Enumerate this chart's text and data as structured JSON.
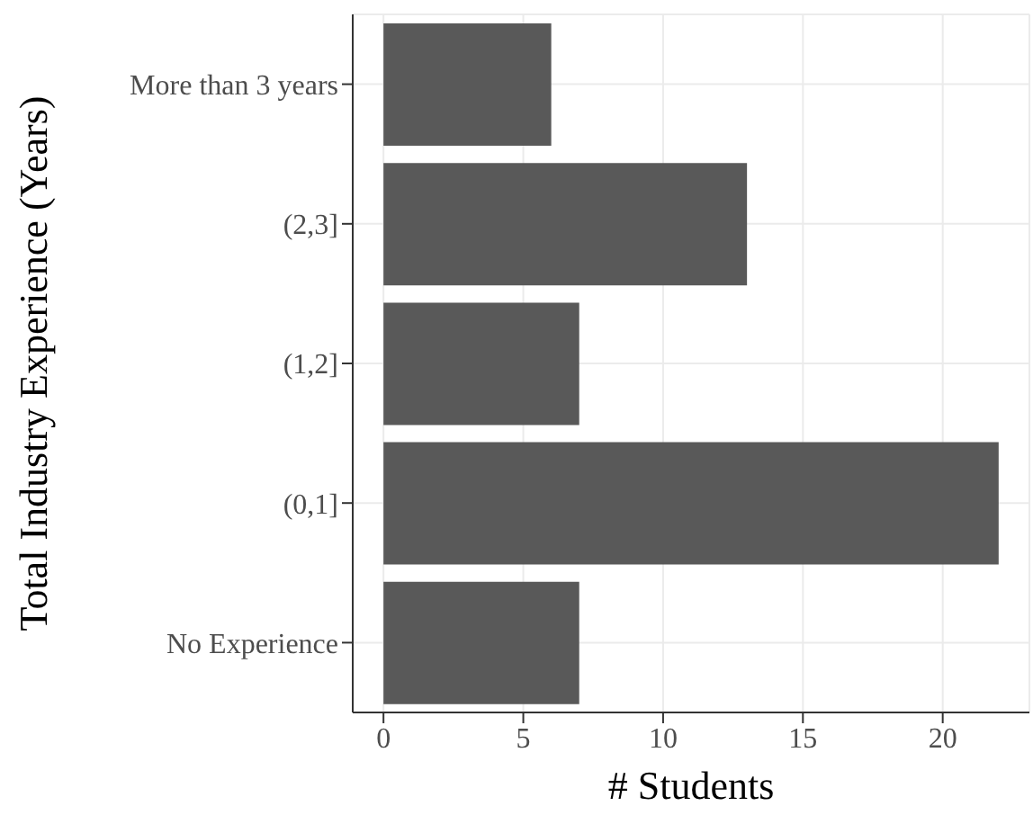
{
  "chart_data": {
    "type": "bar",
    "orientation": "horizontal",
    "xlabel": "# Students",
    "ylabel": "Total Industry Experience (Years)",
    "categories": [
      "More than 3 years",
      "(2,3]",
      "(1,2]",
      "(0,1]",
      "No Experience"
    ],
    "values": [
      6,
      13,
      7,
      22,
      7
    ],
    "color": "#595959",
    "xlim": [
      -1.1,
      23.1
    ],
    "xticks": [
      0,
      5,
      10,
      15,
      20
    ],
    "grid": true
  }
}
